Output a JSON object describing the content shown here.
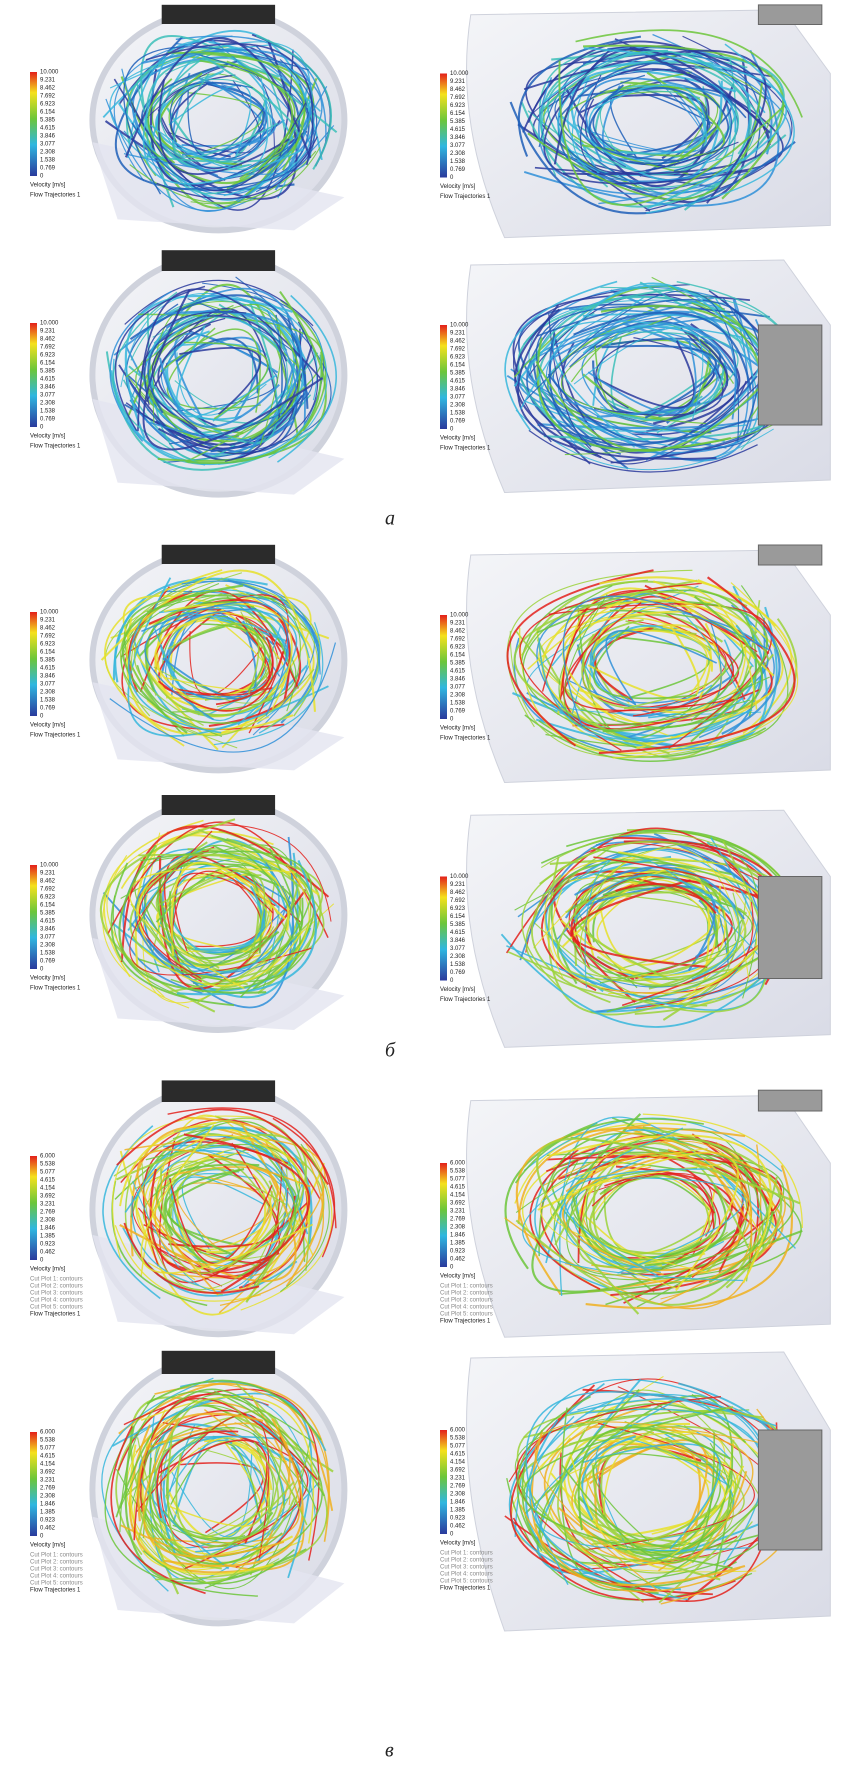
{
  "figure": {
    "groups": [
      {
        "caption": "а",
        "panels": [
          {
            "legend": {
              "scale": [
                "10.000",
                "9.231",
                "8.462",
                "7.692",
                "6.923",
                "6.154",
                "5.385",
                "4.615",
                "3.846",
                "3.077",
                "2.308",
                "1.538",
                "0.769",
                "0"
              ],
              "quantity": "Velocity [m/s]"
            },
            "plots": [
              "Flow Trajectories 1"
            ]
          },
          {
            "legend": {
              "scale": [
                "10.000",
                "9.231",
                "8.462",
                "7.692",
                "6.923",
                "6.154",
                "5.385",
                "4.615",
                "3.846",
                "3.077",
                "2.308",
                "1.538",
                "0.769",
                "0"
              ],
              "quantity": "Velocity [m/s]"
            },
            "plots": [
              "Flow Trajectories 1"
            ]
          },
          {
            "legend": {
              "scale": [
                "10.000",
                "9.231",
                "8.462",
                "7.692",
                "6.923",
                "6.154",
                "5.385",
                "4.615",
                "3.846",
                "3.077",
                "2.308",
                "1.538",
                "0.769",
                "0"
              ],
              "quantity": "Velocity [m/s]"
            },
            "plots": [
              "Flow Trajectories 1"
            ]
          },
          {
            "legend": {
              "scale": [
                "10.000",
                "9.231",
                "8.462",
                "7.692",
                "6.923",
                "6.154",
                "5.385",
                "4.615",
                "3.846",
                "3.077",
                "2.308",
                "1.538",
                "0.769",
                "0"
              ],
              "quantity": "Velocity [m/s]"
            },
            "plots": [
              "Flow Trajectories 1"
            ]
          }
        ]
      },
      {
        "caption": "б",
        "panels": [
          {
            "legend": {
              "scale": [
                "10.000",
                "9.231",
                "8.462",
                "7.692",
                "6.923",
                "6.154",
                "5.385",
                "4.615",
                "3.846",
                "3.077",
                "2.308",
                "1.538",
                "0.769",
                "0"
              ],
              "quantity": "Velocity [m/s]"
            },
            "plots": [
              "Flow Trajectories 1"
            ]
          },
          {
            "legend": {
              "scale": [
                "10.000",
                "9.231",
                "8.462",
                "7.692",
                "6.923",
                "6.154",
                "5.385",
                "4.615",
                "3.846",
                "3.077",
                "2.308",
                "1.538",
                "0.769",
                "0"
              ],
              "quantity": "Velocity [m/s]"
            },
            "plots": [
              "Flow Trajectories 1"
            ]
          },
          {
            "legend": {
              "scale": [
                "10.000",
                "9.231",
                "8.462",
                "7.692",
                "6.923",
                "6.154",
                "5.385",
                "4.615",
                "3.846",
                "3.077",
                "2.308",
                "1.538",
                "0.769",
                "0"
              ],
              "quantity": "Velocity [m/s]"
            },
            "plots": [
              "Flow Trajectories 1"
            ]
          },
          {
            "legend": {
              "scale": [
                "10.000",
                "9.231",
                "8.462",
                "7.692",
                "6.923",
                "6.154",
                "5.385",
                "4.615",
                "3.846",
                "3.077",
                "2.308",
                "1.538",
                "0.769",
                "0"
              ],
              "quantity": "Velocity [m/s]"
            },
            "plots": [
              "Flow Trajectories 1"
            ]
          }
        ]
      },
      {
        "caption": "в",
        "panels": [
          {
            "legend": {
              "scale": [
                "6.000",
                "5.538",
                "5.077",
                "4.615",
                "4.154",
                "3.692",
                "3.231",
                "2.769",
                "2.308",
                "1.846",
                "1.385",
                "0.923",
                "0.462",
                "0"
              ],
              "quantity": "Velocity [m/s]"
            },
            "plots": [
              "Cut Plot 1: contours",
              "Cut Plot 2: contours",
              "Cut Plot 3: contours",
              "Cut Plot 4: contours",
              "Cut Plot 5: contours",
              "Flow Trajectories 1"
            ]
          },
          {
            "legend": {
              "scale": [
                "6.000",
                "5.538",
                "5.077",
                "4.615",
                "4.154",
                "3.692",
                "3.231",
                "2.769",
                "2.308",
                "1.846",
                "1.385",
                "0.923",
                "0.462",
                "0"
              ],
              "quantity": "Velocity [m/s]"
            },
            "plots": [
              "Cut Plot 1: contours",
              "Cut Plot 2: contours",
              "Cut Plot 3: contours",
              "Cut Plot 4: contours",
              "Cut Plot 5: contours",
              "Flow Trajectories 1"
            ]
          },
          {
            "legend": {
              "scale": [
                "6.000",
                "5.538",
                "5.077",
                "4.615",
                "4.154",
                "3.692",
                "3.231",
                "2.769",
                "2.308",
                "1.846",
                "1.385",
                "0.923",
                "0.462",
                "0"
              ],
              "quantity": "Velocity [m/s]"
            },
            "plots": [
              "Cut Plot 1: contours",
              "Cut Plot 2: contours",
              "Cut Plot 3: contours",
              "Cut Plot 4: contours",
              "Cut Plot 5: contours",
              "Flow Trajectories 1"
            ]
          },
          {
            "legend": {
              "scale": [
                "6.000",
                "5.538",
                "5.077",
                "4.615",
                "4.154",
                "3.692",
                "3.231",
                "2.769",
                "2.308",
                "1.846",
                "1.385",
                "0.923",
                "0.462",
                "0"
              ],
              "quantity": "Velocity [m/s]"
            },
            "plots": [
              "Cut Plot 1: contours",
              "Cut Plot 2: contours",
              "Cut Plot 3: contours",
              "Cut Plot 4: contours",
              "Cut Plot 5: contours",
              "Flow Trajectories 1"
            ]
          }
        ]
      }
    ]
  }
}
